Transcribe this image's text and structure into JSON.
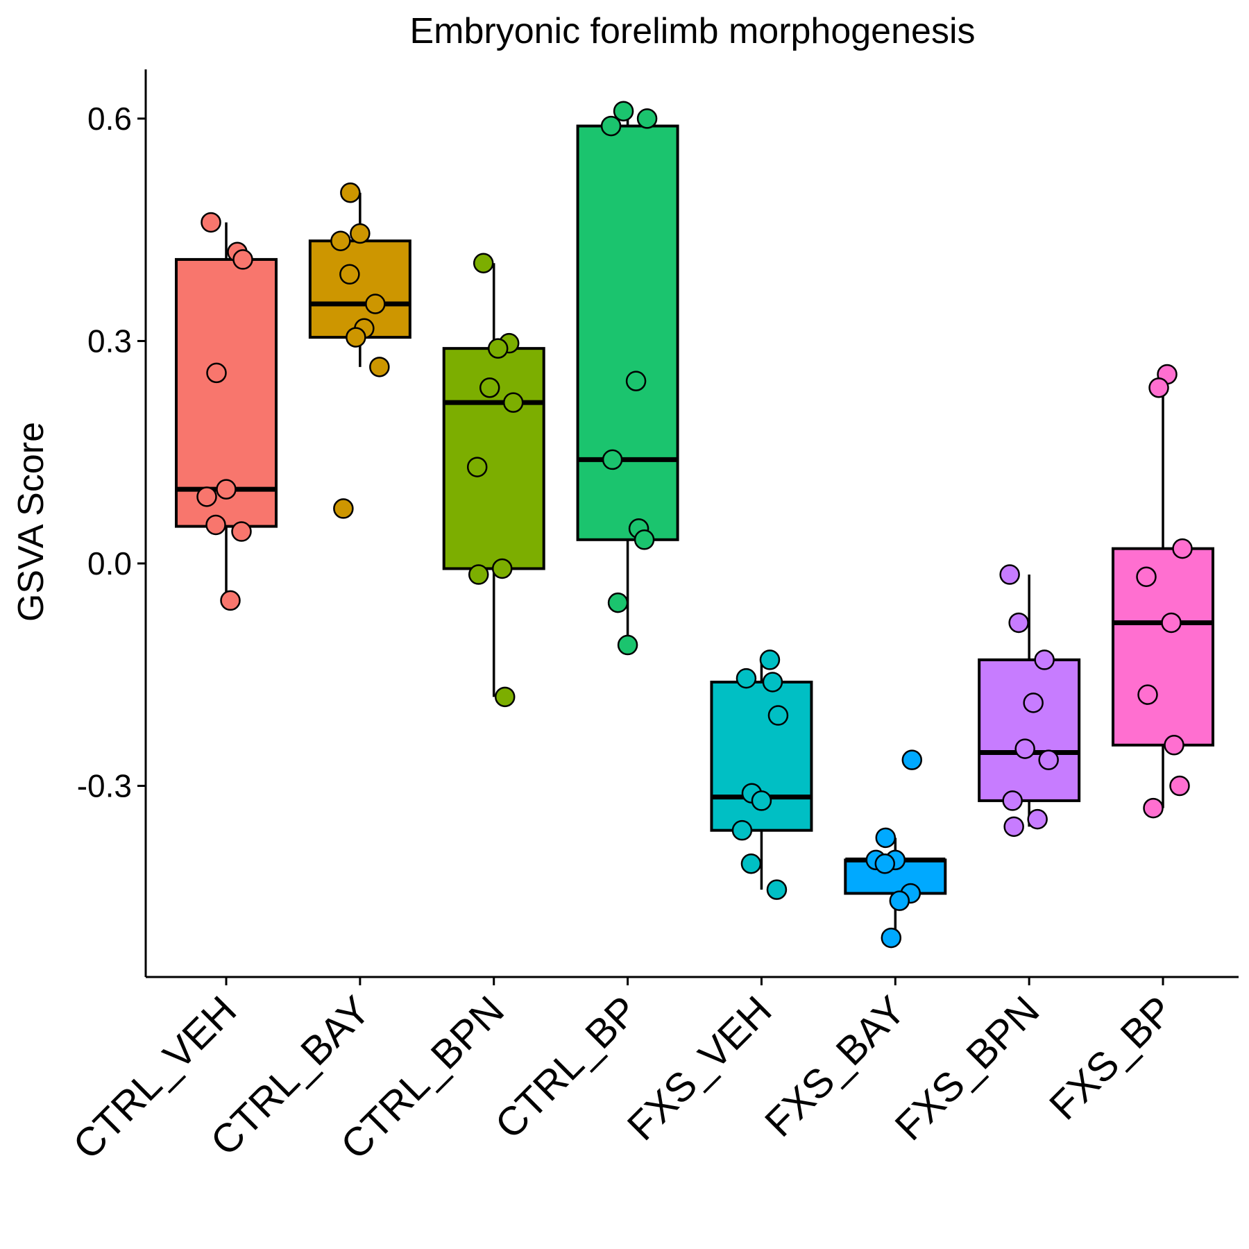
{
  "chart_data": {
    "type": "box",
    "title": "Embryonic forelimb morphogenesis",
    "xlabel": "",
    "ylabel": "GSVA Score",
    "yticks": [
      "-0.3",
      "0.0",
      "0.3",
      "0.6"
    ],
    "ylim": [
      -0.556,
      0.667
    ],
    "grid": false,
    "legend": "none",
    "categories": [
      "CTRL_VEH",
      "CTRL_BAY",
      "CTRL_BPN",
      "CTRL_BP",
      "FXS_VEH",
      "FXS_BAY",
      "FXS_BPN",
      "FXS_BP"
    ],
    "groups": [
      {
        "label": "CTRL_VEH",
        "color": "#F8766D",
        "whisker_low": -0.05,
        "q1": 0.05,
        "median": 0.1,
        "q3": 0.41,
        "whisker_high": 0.46,
        "points": [
          0.46,
          0.42,
          0.41,
          0.257,
          0.1,
          0.09,
          0.052,
          0.043,
          -0.05
        ]
      },
      {
        "label": "CTRL_BAY",
        "color": "#CD9600",
        "whisker_low": 0.265,
        "q1": 0.305,
        "median": 0.35,
        "q3": 0.435,
        "whisker_high": 0.5,
        "points": [
          0.5,
          0.445,
          0.435,
          0.39,
          0.35,
          0.317,
          0.305,
          0.265,
          0.074
        ]
      },
      {
        "label": "CTRL_BPN",
        "color": "#7CAE00",
        "whisker_low": -0.18,
        "q1": -0.007,
        "median": 0.217,
        "q3": 0.29,
        "whisker_high": 0.405,
        "points": [
          0.405,
          0.297,
          0.29,
          0.237,
          0.217,
          0.13,
          -0.007,
          -0.015,
          -0.18
        ]
      },
      {
        "label": "CTRL_BP",
        "color": "#0CB702",
        "fill": "#1BC46E",
        "whisker_low": -0.11,
        "q1": 0.032,
        "median": 0.14,
        "q3": 0.59,
        "whisker_high": 0.61,
        "points": [
          0.61,
          0.6,
          0.59,
          0.246,
          0.14,
          0.047,
          0.032,
          -0.053,
          -0.11
        ]
      },
      {
        "label": "FXS_VEH",
        "color": "#00BFC4",
        "whisker_low": -0.44,
        "q1": -0.36,
        "median": -0.315,
        "q3": -0.16,
        "whisker_high": -0.13,
        "points": [
          -0.13,
          -0.155,
          -0.16,
          -0.205,
          -0.31,
          -0.32,
          -0.36,
          -0.405,
          -0.44
        ]
      },
      {
        "label": "FXS_BAY",
        "color": "#00A9FF",
        "whisker_low": -0.505,
        "q1": -0.445,
        "median": -0.4,
        "q3": -0.4,
        "whisker_high": -0.37,
        "points": [
          -0.265,
          -0.37,
          -0.4,
          -0.4,
          -0.405,
          -0.445,
          -0.455,
          -0.505
        ]
      },
      {
        "label": "FXS_BPN",
        "color": "#C77CFF",
        "whisker_low": -0.355,
        "q1": -0.32,
        "median": -0.255,
        "q3": -0.13,
        "whisker_high": -0.015,
        "points": [
          -0.015,
          -0.08,
          -0.13,
          -0.188,
          -0.25,
          -0.265,
          -0.32,
          -0.345,
          -0.355
        ]
      },
      {
        "label": "FXS_BP",
        "color": "#FF61CC",
        "fill": "#FF6FD0",
        "whisker_low": -0.33,
        "q1": -0.245,
        "median": -0.08,
        "q3": 0.02,
        "whisker_high": 0.255,
        "points": [
          0.255,
          0.237,
          0.02,
          -0.018,
          -0.08,
          -0.177,
          -0.245,
          -0.3,
          -0.33
        ]
      }
    ]
  }
}
